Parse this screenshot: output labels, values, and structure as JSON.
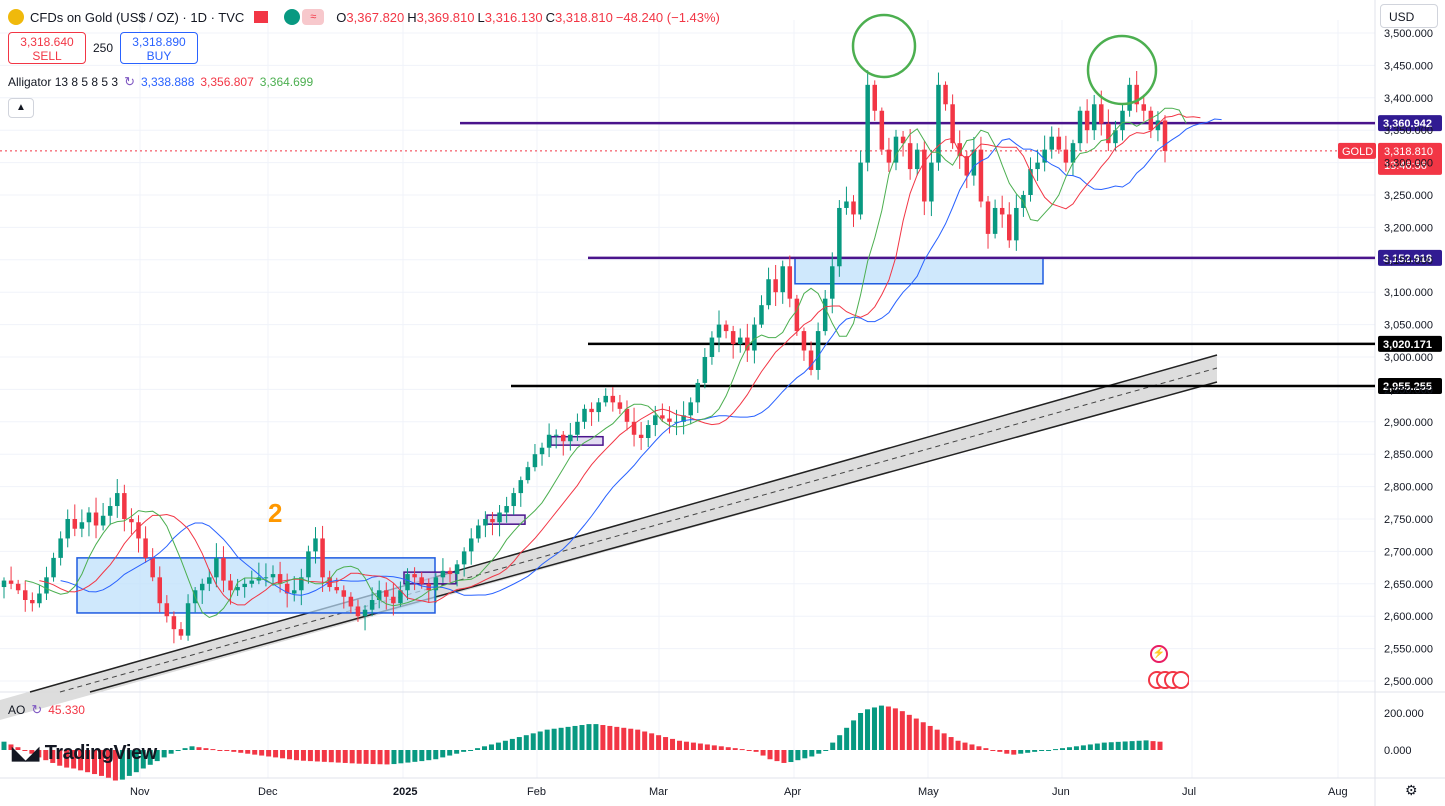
{
  "header": {
    "title": "CFDs on Gold (US$ / OZ) · 1D · TVC",
    "ohlc": [
      {
        "k": "O",
        "v": "3,367.820"
      },
      {
        "k": "H",
        "v": "3,369.810"
      },
      {
        "k": "L",
        "v": "3,316.130"
      },
      {
        "k": "C",
        "v": "3,318.810"
      },
      {
        "k": "",
        "v": "−48.240 (−1.43%)"
      }
    ]
  },
  "trade": {
    "sell_price": "3,318.640",
    "sell_label": "SELL",
    "spread": "250",
    "buy_price": "3,318.890",
    "buy_label": "BUY"
  },
  "indicators": {
    "alligator_name": "Alligator 13 8 5 8 5 3",
    "alligator_jaw": "3,338.888",
    "alligator_teeth": "3,356.807",
    "alligator_lips": "3,364.699",
    "ao_name": "AO",
    "ao_value": "45.330"
  },
  "currency_selector": "USD",
  "branding": "TradingView",
  "annotation_number": "2",
  "colors": {
    "up": "#089981",
    "down": "#f23645",
    "jaw": "#2962ff",
    "teeth": "#f23645",
    "lips": "#4caf50",
    "purple_line": "#4a148c",
    "black_line": "#000000",
    "box_fill": "#bbdefb",
    "box_stroke": "#1e5be0"
  },
  "chart_data": {
    "type": "candlestick",
    "symbol": "GOLD",
    "timeframe": "1D",
    "price_axis": [
      "3,500.000",
      "3,450.000",
      "3,400.000",
      "3,350.000",
      "3,300.000",
      "3,250.000",
      "3,200.000",
      "3,150.000",
      "3,100.000",
      "3,050.000",
      "3,000.000",
      "2,950.000",
      "2,900.000",
      "2,850.000",
      "2,800.000",
      "2,750.000",
      "2,700.000",
      "2,650.000",
      "2,600.000",
      "2,550.000",
      "2,500.000"
    ],
    "ylim": [
      2490,
      3505
    ],
    "time_axis": [
      "Nov",
      "Dec",
      "2025",
      "Feb",
      "Mar",
      "Apr",
      "May",
      "Jun",
      "Jul",
      "Aug"
    ],
    "horizontal_levels": [
      {
        "label": "3,360.942",
        "value": 3360.942,
        "style": "purple"
      },
      {
        "label": "3,152.918",
        "value": 3152.918,
        "style": "purple"
      },
      {
        "label": "3,020.171",
        "value": 3020.171,
        "style": "black"
      },
      {
        "label": "2,955.255",
        "value": 2955.255,
        "style": "black"
      }
    ],
    "last_price": {
      "tag": "GOLD",
      "value": "3,318.810",
      "countdown": "13:46:56"
    },
    "ao_axis": [
      "200.000",
      "0.000"
    ],
    "closes": [
      2655,
      2650,
      2640,
      2625,
      2620,
      2635,
      2660,
      2690,
      2720,
      2750,
      2735,
      2745,
      2760,
      2740,
      2755,
      2770,
      2790,
      2750,
      2745,
      2720,
      2690,
      2660,
      2620,
      2600,
      2580,
      2570,
      2620,
      2640,
      2650,
      2660,
      2690,
      2655,
      2640,
      2645,
      2650,
      2655,
      2660,
      2660,
      2665,
      2650,
      2635,
      2640,
      2660,
      2700,
      2720,
      2660,
      2645,
      2640,
      2630,
      2615,
      2600,
      2610,
      2625,
      2640,
      2630,
      2620,
      2640,
      2665,
      2660,
      2650,
      2640,
      2660,
      2670,
      2665,
      2680,
      2700,
      2720,
      2740,
      2750,
      2745,
      2760,
      2770,
      2790,
      2810,
      2830,
      2850,
      2860,
      2880,
      2880,
      2870,
      2880,
      2900,
      2920,
      2915,
      2930,
      2940,
      2930,
      2920,
      2900,
      2880,
      2875,
      2895,
      2910,
      2905,
      2900,
      2900,
      2910,
      2930,
      2960,
      3000,
      3030,
      3050,
      3040,
      3020,
      3030,
      3010,
      3050,
      3080,
      3120,
      3100,
      3140,
      3090,
      3040,
      3010,
      2980,
      3040,
      3090,
      3140,
      3230,
      3240,
      3220,
      3300,
      3420,
      3380,
      3320,
      3300,
      3340,
      3330,
      3290,
      3320,
      3240,
      3300,
      3420,
      3390,
      3330,
      3310,
      3280,
      3320,
      3240,
      3190,
      3230,
      3220,
      3180,
      3230,
      3250,
      3290,
      3300,
      3320,
      3340,
      3320,
      3300,
      3330,
      3380,
      3350,
      3390,
      3360,
      3330,
      3350,
      3380,
      3420,
      3390,
      3380,
      3350,
      3365,
      3318
    ],
    "ao_values": [
      45,
      30,
      15,
      -5,
      -20,
      -40,
      -55,
      -70,
      -85,
      -95,
      -100,
      -110,
      -120,
      -130,
      -140,
      -150,
      -165,
      -160,
      -140,
      -120,
      -100,
      -80,
      -60,
      -40,
      -20,
      0,
      10,
      20,
      15,
      10,
      5,
      0,
      -5,
      -10,
      -15,
      -20,
      -25,
      -30,
      -35,
      -40,
      -45,
      -50,
      -55,
      -58,
      -60,
      -62,
      -64,
      -66,
      -68,
      -70,
      -72,
      -74,
      -75,
      -76,
      -77,
      -78,
      -76,
      -72,
      -68,
      -64,
      -60,
      -55,
      -50,
      -40,
      -30,
      -20,
      -10,
      0,
      10,
      20,
      30,
      40,
      50,
      60,
      70,
      80,
      90,
      100,
      110,
      115,
      120,
      125,
      130,
      135,
      140,
      140,
      135,
      130,
      125,
      120,
      115,
      110,
      100,
      90,
      80,
      70,
      60,
      50,
      45,
      40,
      35,
      30,
      25,
      20,
      15,
      10,
      5,
      0,
      -10,
      -30,
      -50,
      -60,
      -70,
      -65,
      -55,
      -45,
      -35,
      -20,
      0,
      40,
      80,
      120,
      160,
      200,
      220,
      230,
      240,
      235,
      225,
      210,
      190,
      170,
      150,
      130,
      110,
      90,
      70,
      50,
      40,
      30,
      20,
      10,
      0,
      -10,
      -20,
      -25,
      -20,
      -15,
      -10,
      -5,
      0,
      5,
      10,
      15,
      20,
      25,
      30,
      35,
      40,
      42,
      44,
      46,
      48,
      50,
      52,
      48,
      45
    ]
  }
}
